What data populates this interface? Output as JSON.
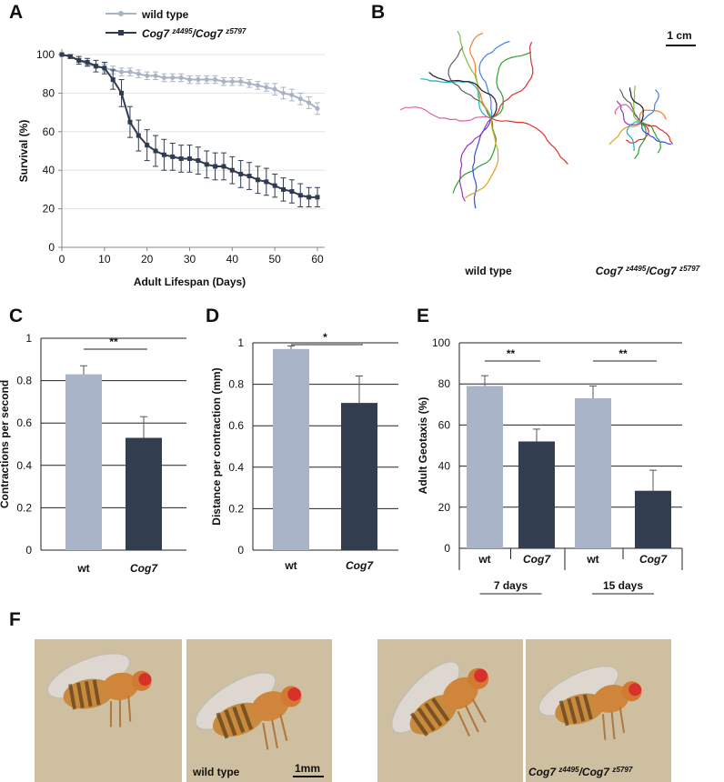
{
  "panel_letters": [
    "A",
    "B",
    "C",
    "D",
    "E",
    "F"
  ],
  "chart_data": [
    {
      "type": "line",
      "xlabel": "Adult Lifespan (Days)",
      "ylabel": "Survival (%)",
      "x": [
        0,
        2,
        4,
        6,
        8,
        10,
        12,
        14,
        16,
        18,
        20,
        22,
        24,
        26,
        28,
        30,
        32,
        34,
        36,
        38,
        40,
        42,
        44,
        46,
        48,
        50,
        52,
        54,
        56,
        58,
        60
      ],
      "xlim": [
        0,
        60
      ],
      "xticks": [
        0,
        10,
        20,
        30,
        40,
        50,
        60
      ],
      "ylim": [
        0,
        100
      ],
      "yticks": [
        0,
        20,
        40,
        60,
        80,
        100
      ],
      "grid": true,
      "series": [
        {
          "name": "wild type",
          "color": "#a9b3c6",
          "values": [
            100,
            99,
            97,
            95,
            94,
            93,
            92,
            91,
            91,
            90,
            89,
            89,
            88,
            88,
            88,
            87,
            87,
            87,
            87,
            86,
            86,
            86,
            85,
            84,
            83,
            82,
            80,
            79,
            77,
            75,
            72
          ],
          "errors": [
            0,
            1,
            1,
            1,
            1,
            2,
            2,
            2,
            2,
            2,
            2,
            2,
            2,
            2,
            2,
            2,
            2,
            2,
            2,
            2,
            2,
            2,
            2,
            2,
            2,
            3,
            3,
            3,
            3,
            3,
            3
          ]
        },
        {
          "name": "Cog7 z4495/Cog7 z5797",
          "color": "#2f3b4f",
          "values": [
            100,
            99,
            97,
            96,
            94,
            93,
            87,
            80,
            65,
            58,
            53,
            50,
            48,
            47,
            46,
            46,
            45,
            43,
            42,
            42,
            40,
            38,
            37,
            35,
            34,
            32,
            30,
            29,
            27,
            26,
            26
          ],
          "errors": [
            0,
            1,
            2,
            2,
            3,
            3,
            5,
            7,
            8,
            8,
            8,
            8,
            8,
            7,
            7,
            7,
            7,
            7,
            7,
            7,
            7,
            7,
            7,
            7,
            7,
            6,
            6,
            6,
            6,
            5,
            5
          ]
        }
      ]
    },
    {
      "type": "bar",
      "ylabel": "Contractions per second",
      "categories": [
        "wt",
        "Cog7"
      ],
      "values": [
        0.83,
        0.53
      ],
      "errors": [
        0.04,
        0.1
      ],
      "colors": [
        "#aab4c8",
        "#323d4f"
      ],
      "ylim": [
        0,
        1
      ],
      "yticks": [
        0,
        0.2,
        0.4,
        0.6,
        0.8,
        1
      ],
      "grid": true,
      "significance": [
        "**"
      ]
    },
    {
      "type": "bar",
      "ylabel": "Distance per contraction (mm)",
      "categories": [
        "wt",
        "Cog7"
      ],
      "values": [
        0.97,
        0.71
      ],
      "errors": [
        0.015,
        0.13
      ],
      "colors": [
        "#aab4c8",
        "#323d4f"
      ],
      "ylim": [
        0,
        1
      ],
      "yticks": [
        0,
        0.2,
        0.4,
        0.6,
        0.8,
        1
      ],
      "grid": true,
      "significance": [
        "*"
      ]
    },
    {
      "type": "bar",
      "ylabel": "Adult Geotaxis (%)",
      "categories": [
        "wt",
        "Cog7",
        "wt",
        "Cog7"
      ],
      "groups": [
        "7 days",
        "15 days"
      ],
      "values": [
        79,
        52,
        73,
        28
      ],
      "errors": [
        5,
        6,
        6,
        10
      ],
      "colors": [
        "#aab4c8",
        "#323d4f",
        "#aab4c8",
        "#323d4f"
      ],
      "ylim": [
        0,
        100
      ],
      "yticks": [
        0,
        20,
        40,
        60,
        80,
        100
      ],
      "grid": true,
      "significance": [
        "**",
        "**"
      ]
    }
  ],
  "trajectories": {
    "scale_bar": "1 cm",
    "labels": [
      "wild type",
      "Cog7 z4495/Cog7 z5797"
    ]
  },
  "photos": {
    "scale_bar": "1mm",
    "labels": [
      "wild type",
      "Cog7 z4495/Cog7 z5797"
    ]
  }
}
